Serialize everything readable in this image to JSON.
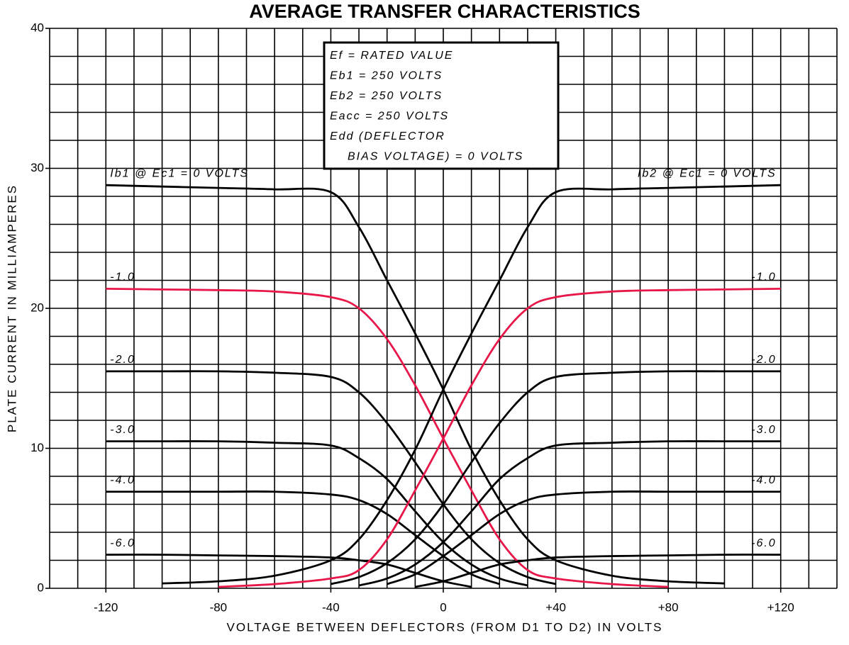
{
  "chart_data": {
    "type": "line",
    "title": "AVERAGE TRANSFER CHARACTERISTICS",
    "xlabel": "VOLTAGE BETWEEN DEFLECTORS (FROM D1 TO D2) IN VOLTS",
    "ylabel": "PLATE CURRENT IN MILLIAMPERES",
    "annotations": [
      "Ef = RATED VALUE",
      "Eb1 = 250 VOLTS",
      "Eb2 = 250 VOLTS",
      "Eacc = 250 VOLTS",
      "Edd (DEFLECTOR",
      "BIAS VOLTAGE) = 0 VOLTS"
    ],
    "xlim": [
      -140,
      140
    ],
    "ylim": [
      0,
      40
    ],
    "xticks": [
      -120,
      -80,
      -40,
      0,
      {
        "value": 40,
        "label": "+40"
      },
      {
        "value": 80,
        "label": "+80"
      },
      {
        "value": 120,
        "label": "+120"
      }
    ],
    "yticks": [
      0,
      10,
      20,
      30,
      40
    ],
    "x_gridlines": [
      -140,
      -130,
      -120,
      -110,
      -100,
      -90,
      -80,
      -70,
      -60,
      -50,
      -40,
      -30,
      -20,
      -10,
      0,
      10,
      20,
      30,
      40,
      50,
      60,
      70,
      80,
      90,
      100,
      110,
      120,
      130,
      140
    ],
    "y_gridlines": [
      0,
      2,
      4,
      6,
      8,
      10,
      12,
      14,
      16,
      18,
      20,
      22,
      24,
      26,
      28,
      30,
      32,
      34,
      36,
      38,
      40
    ],
    "grid": true,
    "x": [
      -120,
      -100,
      -80,
      -60,
      -40,
      -30,
      -20,
      -10,
      0,
      10,
      20,
      30,
      40,
      60,
      80,
      100,
      120
    ],
    "series": [
      {
        "name": "Ib1 @ Ec1 = 0 VOLTS",
        "side": "left",
        "color": "#000000",
        "values": [
          28.8,
          28.7,
          28.6,
          28.5,
          28.3,
          25.8,
          22.0,
          18.2,
          14.2,
          9.9,
          6.3,
          3.5,
          2.0,
          0.9,
          0.5,
          0.35,
          null
        ]
      },
      {
        "name": "-1.0",
        "side": "left",
        "color": "#e8174a",
        "values": [
          21.4,
          21.35,
          21.3,
          21.2,
          20.8,
          20.0,
          17.8,
          14.5,
          10.7,
          7.0,
          3.5,
          1.3,
          0.7,
          0.3,
          0.1,
          null,
          null
        ]
      },
      {
        "name": "-2.0",
        "side": "left",
        "color": "#000000",
        "values": [
          15.5,
          15.5,
          15.5,
          15.4,
          15.1,
          14.0,
          11.8,
          9.0,
          6.0,
          3.5,
          1.8,
          0.8,
          0.3,
          null,
          null,
          null,
          null
        ]
      },
      {
        "name": "-3.0",
        "side": "left",
        "color": "#000000",
        "values": [
          10.5,
          10.5,
          10.5,
          10.4,
          10.2,
          9.3,
          7.8,
          5.5,
          3.3,
          1.7,
          0.7,
          0.2,
          null,
          null,
          null,
          null,
          null
        ]
      },
      {
        "name": "-4.0",
        "side": "left",
        "color": "#000000",
        "values": [
          6.9,
          6.9,
          6.9,
          6.9,
          6.7,
          6.3,
          5.3,
          3.8,
          2.3,
          1.0,
          0.3,
          null,
          null,
          null,
          null,
          null,
          null
        ]
      },
      {
        "name": "-6.0",
        "side": "left",
        "color": "#000000",
        "values": [
          2.4,
          2.4,
          2.35,
          2.3,
          2.2,
          2.0,
          1.7,
          1.1,
          0.5,
          0.1,
          null,
          null,
          null,
          null,
          null,
          null,
          null
        ]
      },
      {
        "name": "Ib2 @ Ec1 = 0 VOLTS",
        "side": "right",
        "color": "#000000",
        "values": [
          null,
          0.35,
          0.5,
          0.9,
          2.0,
          3.5,
          6.3,
          9.9,
          14.2,
          18.2,
          22.0,
          25.8,
          28.3,
          28.5,
          28.6,
          28.7,
          28.8
        ]
      },
      {
        "name": "-1.0",
        "side": "right",
        "color": "#e8174a",
        "values": [
          null,
          null,
          0.1,
          0.3,
          0.7,
          1.3,
          3.5,
          7.0,
          10.7,
          14.5,
          17.8,
          20.0,
          20.8,
          21.2,
          21.3,
          21.35,
          21.4
        ]
      },
      {
        "name": "-2.0",
        "side": "right",
        "color": "#000000",
        "values": [
          null,
          null,
          null,
          null,
          0.3,
          0.8,
          1.8,
          3.5,
          6.0,
          9.0,
          11.8,
          14.0,
          15.1,
          15.4,
          15.5,
          15.5,
          15.5
        ]
      },
      {
        "name": "-3.0",
        "side": "right",
        "color": "#000000",
        "values": [
          null,
          null,
          null,
          null,
          null,
          0.2,
          0.7,
          1.7,
          3.3,
          5.5,
          7.8,
          9.3,
          10.2,
          10.4,
          10.5,
          10.5,
          10.5
        ]
      },
      {
        "name": "-4.0",
        "side": "right",
        "color": "#000000",
        "values": [
          null,
          null,
          null,
          null,
          null,
          null,
          0.3,
          1.0,
          2.3,
          3.8,
          5.3,
          6.3,
          6.7,
          6.9,
          6.9,
          6.9,
          6.9
        ]
      },
      {
        "name": "-6.0",
        "side": "right",
        "color": "#000000",
        "values": [
          null,
          null,
          null,
          null,
          null,
          null,
          null,
          0.1,
          0.5,
          1.1,
          1.7,
          2.0,
          2.2,
          2.3,
          2.35,
          2.4,
          2.4
        ]
      }
    ]
  }
}
